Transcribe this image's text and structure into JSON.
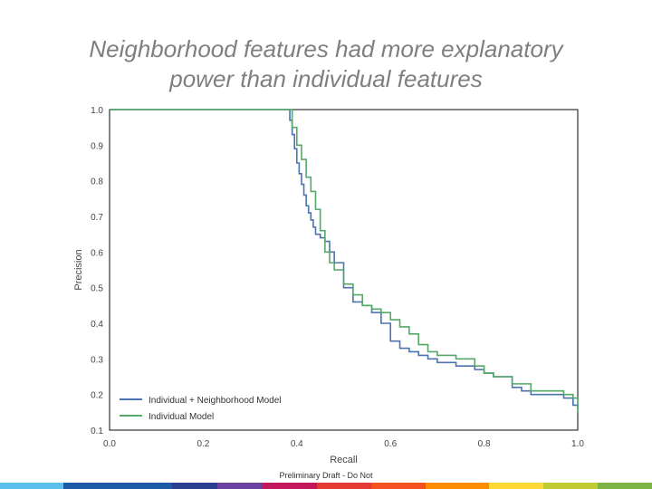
{
  "slide": {
    "title_line1": "Neighborhood features had more explanatory",
    "title_line2": "power than individual features",
    "footer": "Preliminary Draft - Do Not"
  },
  "colors": {
    "title": "#7f7f7f",
    "series_blue": "#4c72b0",
    "series_green": "#55a868",
    "accent_bar": [
      "#5bc0eb",
      "#1c5aa6",
      "#1c5aa6",
      "#2a3f8f",
      "#6b3fa0",
      "#c2185b",
      "#e53935",
      "#f4511e",
      "#fb8c00",
      "#fdd835",
      "#c0ca33",
      "#7cb342"
    ]
  },
  "chart_data": {
    "type": "line",
    "title": "",
    "xlabel": "Recall",
    "ylabel": "Precision",
    "xlim": [
      0.0,
      1.0
    ],
    "ylim": [
      0.1,
      1.0
    ],
    "xticks": [
      "0.0",
      "0.2",
      "0.4",
      "0.6",
      "0.8",
      "1.0"
    ],
    "yticks": [
      "1.0",
      "0.9",
      "0.8",
      "0.7",
      "0.6",
      "0.5",
      "0.4",
      "0.3",
      "0.2",
      "0.1"
    ],
    "grid": false,
    "legend_position": "lower-left",
    "series": [
      {
        "name": "Individual + Neighborhood Model",
        "color": "#4c72b0",
        "x": [
          0.0,
          0.38,
          0.385,
          0.39,
          0.395,
          0.4,
          0.405,
          0.41,
          0.415,
          0.42,
          0.425,
          0.43,
          0.435,
          0.44,
          0.45,
          0.46,
          0.47,
          0.48,
          0.5,
          0.52,
          0.54,
          0.56,
          0.58,
          0.6,
          0.62,
          0.64,
          0.66,
          0.68,
          0.7,
          0.74,
          0.78,
          0.8,
          0.82,
          0.86,
          0.88,
          0.9,
          0.94,
          0.97,
          0.99,
          1.0
        ],
        "y": [
          1.0,
          1.0,
          0.97,
          0.93,
          0.89,
          0.85,
          0.82,
          0.79,
          0.76,
          0.73,
          0.71,
          0.69,
          0.67,
          0.65,
          0.64,
          0.63,
          0.6,
          0.57,
          0.5,
          0.46,
          0.45,
          0.43,
          0.4,
          0.35,
          0.33,
          0.32,
          0.31,
          0.3,
          0.29,
          0.28,
          0.27,
          0.26,
          0.25,
          0.22,
          0.21,
          0.2,
          0.2,
          0.19,
          0.17,
          0.16
        ]
      },
      {
        "name": "Individual Model",
        "color": "#55a868",
        "x": [
          0.0,
          0.38,
          0.39,
          0.4,
          0.41,
          0.42,
          0.43,
          0.44,
          0.45,
          0.46,
          0.47,
          0.48,
          0.5,
          0.52,
          0.54,
          0.56,
          0.58,
          0.6,
          0.62,
          0.64,
          0.66,
          0.68,
          0.7,
          0.74,
          0.78,
          0.8,
          0.82,
          0.86,
          0.9,
          0.94,
          0.97,
          0.99,
          1.0
        ],
        "y": [
          1.0,
          1.0,
          0.95,
          0.9,
          0.86,
          0.81,
          0.77,
          0.72,
          0.66,
          0.6,
          0.57,
          0.55,
          0.51,
          0.48,
          0.45,
          0.44,
          0.43,
          0.41,
          0.39,
          0.37,
          0.34,
          0.32,
          0.31,
          0.3,
          0.28,
          0.26,
          0.25,
          0.23,
          0.21,
          0.21,
          0.2,
          0.19,
          0.15
        ]
      }
    ]
  }
}
